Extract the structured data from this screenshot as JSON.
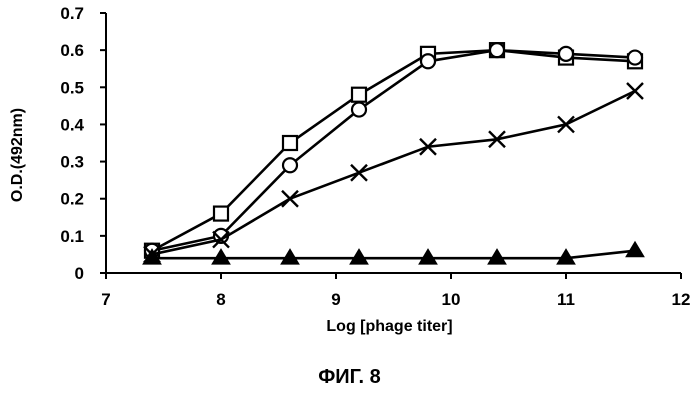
{
  "figure_caption": "ФИГ. 8",
  "chart_data": {
    "type": "line",
    "title": "",
    "xlabel": "Log [phage titer]",
    "ylabel": "O.D.(492nm)",
    "xlim": [
      7,
      12
    ],
    "ylim": [
      0,
      0.7
    ],
    "x_ticks": [
      "7",
      "8",
      "9",
      "10",
      "11",
      "12"
    ],
    "y_ticks": [
      "0",
      "0.1",
      "0.2",
      "0.3",
      "0.4",
      "0.5",
      "0.6",
      "0.7"
    ],
    "grid": false,
    "legend": "none",
    "x": [
      7.4,
      8.0,
      8.6,
      9.2,
      9.8,
      10.4,
      11.0,
      11.6
    ],
    "series": [
      {
        "marker": "square",
        "values": [
          0.06,
          0.16,
          0.35,
          0.48,
          0.59,
          0.6,
          0.58,
          0.57
        ]
      },
      {
        "marker": "circle",
        "values": [
          0.06,
          0.1,
          0.29,
          0.44,
          0.57,
          0.6,
          0.59,
          0.58
        ]
      },
      {
        "marker": "cross",
        "values": [
          0.05,
          0.09,
          0.2,
          0.27,
          0.34,
          0.36,
          0.4,
          0.49
        ]
      },
      {
        "marker": "triangle",
        "values": [
          0.04,
          0.04,
          0.04,
          0.04,
          0.04,
          0.04,
          0.04,
          0.06
        ]
      }
    ]
  }
}
